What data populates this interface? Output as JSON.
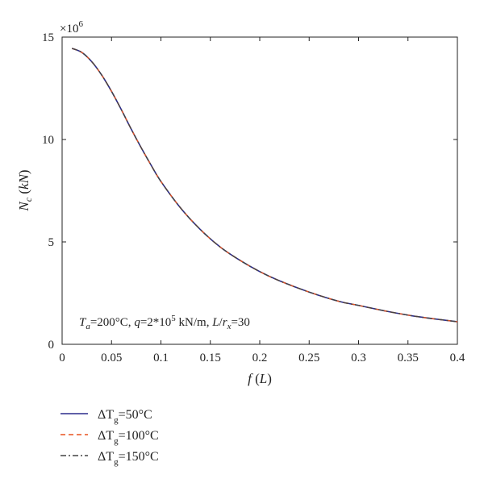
{
  "chart_data": {
    "type": "line",
    "title": "",
    "xlabel": "f (L)",
    "ylabel": "N_c (kN)",
    "y_multiplier_label": "×10^6",
    "xlim": [
      0,
      0.4
    ],
    "ylim": [
      0,
      15
    ],
    "x_ticks": [
      "0",
      "0.05",
      "0.1",
      "0.15",
      "0.2",
      "0.25",
      "0.3",
      "0.35",
      "0.4"
    ],
    "y_ticks": [
      "0",
      "5",
      "10",
      "15"
    ],
    "grid": false,
    "legend_position": "below",
    "annotation": {
      "text": "T_a=200°C, q=2*10^5 kN/m, L/r_x=30"
    },
    "x": [
      0.01,
      0.02,
      0.03,
      0.04,
      0.05,
      0.06,
      0.07,
      0.08,
      0.09,
      0.1,
      0.12,
      0.14,
      0.16,
      0.18,
      0.2,
      0.22,
      0.25,
      0.28,
      0.3,
      0.33,
      0.36,
      0.4
    ],
    "series": [
      {
        "name": "ΔTg=50°C",
        "color": "#2b2b8c",
        "dash": "solid",
        "values": [
          14.45,
          14.25,
          13.8,
          13.15,
          12.35,
          11.45,
          10.5,
          9.6,
          8.75,
          7.95,
          6.65,
          5.6,
          4.75,
          4.1,
          3.55,
          3.1,
          2.55,
          2.1,
          1.9,
          1.6,
          1.35,
          1.1
        ]
      },
      {
        "name": "ΔTg=100°C",
        "color": "#e8521e",
        "dash": "dashed",
        "values": [
          14.45,
          14.25,
          13.8,
          13.15,
          12.35,
          11.45,
          10.5,
          9.6,
          8.75,
          7.95,
          6.65,
          5.6,
          4.75,
          4.1,
          3.55,
          3.1,
          2.55,
          2.1,
          1.9,
          1.6,
          1.35,
          1.1
        ]
      },
      {
        "name": "ΔTg=150°C",
        "color": "#444444",
        "dash": "dashdot",
        "values": [
          14.45,
          14.25,
          13.8,
          13.15,
          12.35,
          11.45,
          10.5,
          9.6,
          8.75,
          7.95,
          6.65,
          5.6,
          4.75,
          4.1,
          3.55,
          3.1,
          2.55,
          2.1,
          1.9,
          1.6,
          1.35,
          1.1
        ]
      }
    ]
  },
  "legend": {
    "items": [
      {
        "delta": "ΔT",
        "sub": "g",
        "rest": "=50°C"
      },
      {
        "delta": "ΔT",
        "sub": "g",
        "rest": "=100°C"
      },
      {
        "delta": "ΔT",
        "sub": "g",
        "rest": "=150°C"
      }
    ]
  }
}
